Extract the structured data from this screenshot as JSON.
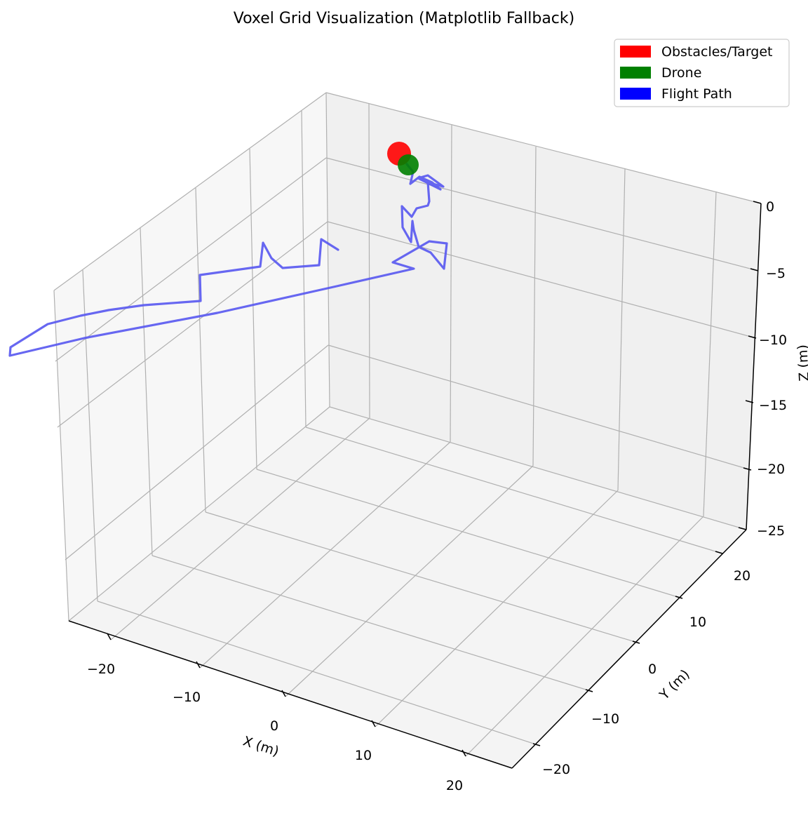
{
  "chart_data": {
    "type": "line",
    "title": "Voxel Grid Visualization (Matplotlib Fallback)",
    "xlabel": "X (m)",
    "ylabel": "Y (m)",
    "zlabel": "Z (m)",
    "x_ticks": [
      -20,
      -10,
      0,
      10,
      20
    ],
    "y_ticks": [
      -20,
      -10,
      0,
      10,
      20
    ],
    "z_ticks": [
      0,
      -5,
      -10,
      -15,
      -20,
      -25
    ],
    "zlim": [
      -25,
      0
    ],
    "grid": true,
    "legend_position": "top-right",
    "legend": [
      {
        "label": "Obstacles/Target",
        "color": "#ff0000"
      },
      {
        "label": "Drone",
        "color": "#008000"
      },
      {
        "label": "Flight Path",
        "color": "#0000ff"
      }
    ],
    "markers": [
      {
        "name": "Obstacles/Target",
        "color": "#ff0000"
      },
      {
        "name": "Drone",
        "color": "#008000"
      }
    ],
    "series": [
      {
        "name": "Flight Path",
        "color": "#0000ff"
      }
    ]
  }
}
